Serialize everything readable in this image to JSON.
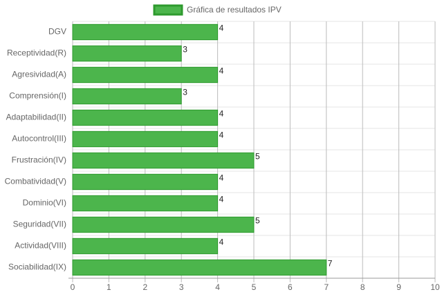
{
  "chart_data": {
    "type": "bar",
    "orientation": "horizontal",
    "categories": [
      "DGV",
      "Receptividad(R)",
      "Agresividad(A)",
      "Comprensión(I)",
      "Adaptabilidad(II)",
      "Autocontrol(III)",
      "Frustración(IV)",
      "Combatividad(V)",
      "Dominio(VI)",
      "Seguridad(VII)",
      "Actividad(VIII)",
      "Sociabilidad(IX)"
    ],
    "series": [
      {
        "name": "Gráfica de resultados IPV",
        "color": "#4cb54c",
        "border_color": "#2e9a2e",
        "values": [
          4,
          3,
          4,
          3,
          4,
          4,
          5,
          4,
          4,
          5,
          4,
          7
        ]
      }
    ],
    "xlim": [
      0,
      10
    ],
    "xticks": [
      0,
      1,
      2,
      3,
      4,
      5,
      6,
      7,
      8,
      9,
      10
    ],
    "grid": true,
    "legend": "top"
  }
}
